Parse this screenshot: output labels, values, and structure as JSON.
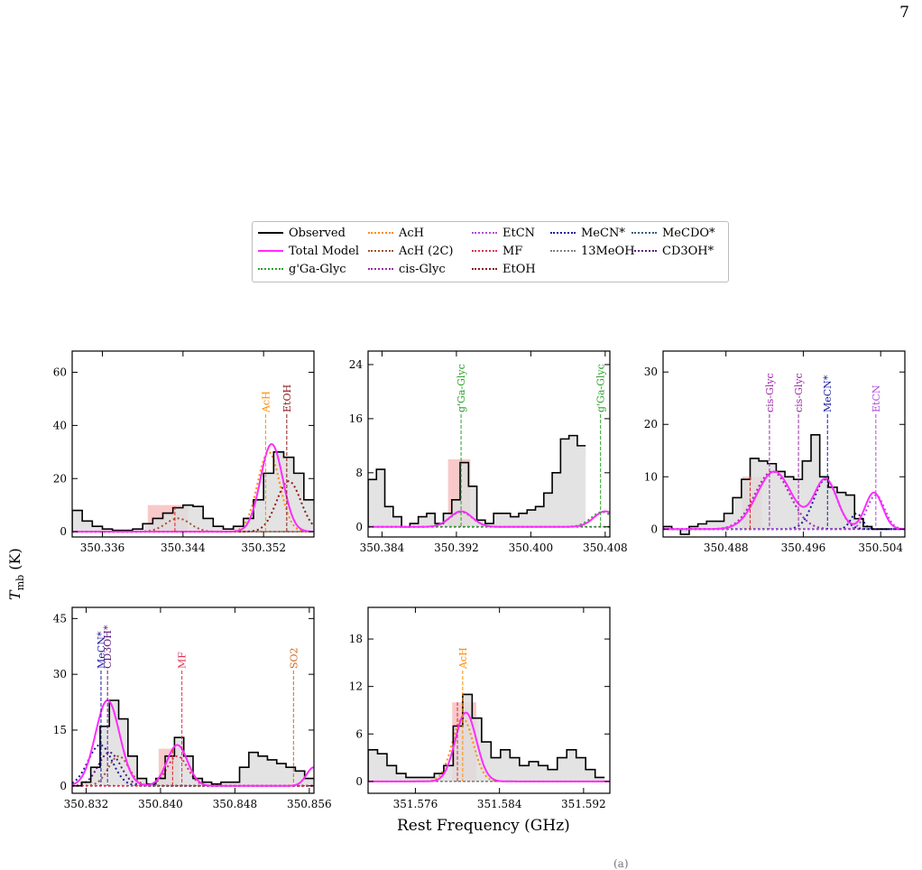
{
  "page_number": "7",
  "y_axis_label": "T",
  "y_axis_label_sub": "mb",
  "y_axis_label_unit": " (K)",
  "x_axis_label": "Rest Frequency (GHz)",
  "caption_fragment": "(a)",
  "colors": {
    "observed": "#000000",
    "total_model": "#ff2bff",
    "fill": "#dedede",
    "highlight": "#f7b7b7"
  },
  "legend": [
    {
      "label": "Observed",
      "color": "#000000",
      "style": "solid"
    },
    {
      "label": "Total Model",
      "color": "#ff2bff",
      "style": "solid"
    },
    {
      "label": "g'Ga-Glyc",
      "color": "#2ca02c",
      "style": "dotted"
    },
    {
      "label": "AcH",
      "color": "#ff8c00",
      "style": "dotted"
    },
    {
      "label": "AcH (2C)",
      "color": "#a0522d",
      "style": "dotted"
    },
    {
      "label": "cis-Glyc",
      "color": "#9b2aa8",
      "style": "dotted"
    },
    {
      "label": "EtCN",
      "color": "#b04ce0",
      "style": "dotted"
    },
    {
      "label": "MF",
      "color": "#e03050",
      "style": "dotted"
    },
    {
      "label": "EtOH",
      "color": "#8b1a1a",
      "style": "dotted"
    },
    {
      "label": "MeCN*",
      "color": "#1a1aa0",
      "style": "dotted"
    },
    {
      "label": "13MeOH",
      "color": "#808080",
      "style": "dotted"
    },
    {
      "label": "MeCDO*",
      "color": "#2f5f7f",
      "style": "dotted"
    },
    {
      "label": "CD3OH*",
      "color": "#5a1a7a",
      "style": "dotted"
    }
  ],
  "chart_data": [
    {
      "type": "line",
      "xlim": [
        350.333,
        350.357
      ],
      "ylim": [
        -2,
        68
      ],
      "xticks": [
        350.336,
        350.344,
        350.352
      ],
      "yticks": [
        0,
        20,
        40,
        60
      ],
      "step_x0": 350.333,
      "step_dx": 0.001,
      "observed": [
        8,
        4,
        2,
        1,
        0.5,
        0.5,
        1,
        3,
        5,
        7,
        9,
        10,
        9.5,
        5,
        2,
        1,
        2,
        5,
        12,
        22,
        30,
        28,
        22,
        12
      ],
      "highlights": [
        {
          "x0": 350.3405,
          "x1": 350.3445,
          "y": 10
        }
      ],
      "total_model": [
        {
          "center": 350.3528,
          "amp": 33,
          "sigma": 0.0011,
          "base": 0
        }
      ],
      "components": [
        {
          "name": "AcH",
          "color": "#ff8c00",
          "center": 350.3525,
          "amp": 30,
          "sigma": 0.0011
        },
        {
          "name": "EtOH",
          "color": "#8b1a1a",
          "center": 350.3545,
          "amp": 19,
          "sigma": 0.0012
        },
        {
          "name": "AcH (2C)",
          "color": "#a0522d",
          "center": 350.3435,
          "amp": 5,
          "sigma": 0.0012
        }
      ],
      "lines": [
        {
          "label": "AcH",
          "x": 350.3522,
          "color": "#ff8c00"
        },
        {
          "label": "EtOH",
          "x": 350.3543,
          "color": "#8b1a1a"
        }
      ],
      "red_lines": [
        350.3432
      ]
    },
    {
      "type": "line",
      "xlim": [
        350.3825,
        350.4085
      ],
      "ylim": [
        -1.5,
        26
      ],
      "xticks": [
        350.384,
        350.392,
        350.4,
        350.408
      ],
      "yticks": [
        0,
        8,
        16,
        24
      ],
      "step_x0": 350.3825,
      "step_dx": 0.0009,
      "observed": [
        7,
        8.5,
        3,
        1.5,
        0,
        0.5,
        1.5,
        2,
        0.5,
        2,
        4,
        9.5,
        6,
        1,
        0.5,
        2,
        2,
        1.5,
        2,
        2.5,
        3,
        5,
        8,
        13,
        13.5,
        12
      ],
      "highlights": [
        {
          "x0": 350.3911,
          "x1": 350.3935,
          "y": 10
        }
      ],
      "total_model": [
        {
          "center": 350.3925,
          "amp": 2.3,
          "sigma": 0.0012,
          "base": 0
        },
        {
          "center": 350.408,
          "amp": 2.3,
          "sigma": 0.0012,
          "base": 0
        }
      ],
      "components": [
        {
          "name": "g'Ga-Glyc",
          "color": "#2ca02c",
          "center": 350.3925,
          "amp": 2.2,
          "sigma": 0.0012
        },
        {
          "name": "g'Ga-Glyc",
          "color": "#2ca02c",
          "center": 350.4077,
          "amp": 2.2,
          "sigma": 0.0012
        }
      ],
      "lines": [
        {
          "label": "g'Ga-Glyc",
          "x": 350.3925,
          "color": "#2ca02c"
        },
        {
          "label": "g'Ga-Glyc",
          "x": 350.4075,
          "color": "#2ca02c"
        }
      ],
      "red_lines": []
    },
    {
      "type": "line",
      "xlim": [
        350.4815,
        350.5065
      ],
      "ylim": [
        -1.5,
        34
      ],
      "xticks": [
        350.488,
        350.496,
        350.504
      ],
      "yticks": [
        0,
        10,
        20,
        30
      ],
      "step_x0": 350.4815,
      "step_dx": 0.0009,
      "observed": [
        0.5,
        0,
        -1,
        0.5,
        1,
        1.5,
        1.5,
        3,
        6,
        9.5,
        13.5,
        13,
        12.5,
        11,
        10,
        9.5,
        13,
        18,
        10,
        8,
        7,
        6.5,
        2,
        0.5,
        0,
        0
      ],
      "highlights": [
        {
          "x0": 350.4897,
          "x1": 350.4917,
          "y": 10
        }
      ],
      "total_model": [
        {
          "center": 350.493,
          "amp": 11,
          "sigma": 0.0018,
          "base": 0
        },
        {
          "center": 350.4983,
          "amp": 9.5,
          "sigma": 0.0012,
          "base": 0
        },
        {
          "center": 350.5033,
          "amp": 7,
          "sigma": 0.0009,
          "base": 0
        }
      ],
      "components": [
        {
          "name": "cis-Glyc",
          "color": "#9b2aa8",
          "center": 350.4928,
          "amp": 11,
          "sigma": 0.0018
        },
        {
          "name": "MeCN*",
          "color": "#1a1aa0",
          "center": 350.4983,
          "amp": 9.5,
          "sigma": 0.0012
        },
        {
          "name": "MeCN*",
          "color": "#1a1aa0",
          "center": 350.5015,
          "amp": 3,
          "sigma": 0.0006
        },
        {
          "name": "EtCN",
          "color": "#b04ce0",
          "center": 350.5035,
          "amp": 6.5,
          "sigma": 0.0009
        }
      ],
      "lines": [
        {
          "label": "cis-Glyc",
          "x": 350.4925,
          "color": "#9b2aa8"
        },
        {
          "label": "cis-Glyc",
          "x": 350.4955,
          "color": "#9b2aa8"
        },
        {
          "label": "MeCN*",
          "x": 350.4985,
          "color": "#1a1aa0"
        },
        {
          "label": "EtCN",
          "x": 350.5035,
          "color": "#b04ce0"
        }
      ],
      "red_lines": [
        350.4905
      ]
    },
    {
      "type": "line",
      "xlim": [
        350.8305,
        350.8565
      ],
      "ylim": [
        -2,
        48
      ],
      "xticks": [
        350.832,
        350.84,
        350.848,
        350.856
      ],
      "yticks": [
        0,
        15,
        30,
        45
      ],
      "step_x0": 350.8305,
      "step_dx": 0.001,
      "observed": [
        0,
        1,
        5,
        16,
        23,
        18,
        8,
        2,
        0.5,
        2,
        8,
        13,
        8,
        2,
        1,
        0.5,
        1,
        1,
        5,
        9,
        8,
        7,
        6,
        5,
        4,
        2
      ],
      "highlights": [
        {
          "x0": 350.8398,
          "x1": 350.842,
          "y": 10
        }
      ],
      "total_model": [
        {
          "center": 350.8343,
          "amp": 23,
          "sigma": 0.0013,
          "base": 0
        },
        {
          "center": 350.8418,
          "amp": 11,
          "sigma": 0.0011,
          "base": 0
        },
        {
          "center": 350.8565,
          "amp": 5,
          "sigma": 0.0008,
          "base": 0
        }
      ],
      "components": [
        {
          "name": "MeCN*",
          "color": "#1a1aa0",
          "center": 350.8335,
          "amp": 11,
          "sigma": 0.0013
        },
        {
          "name": "CD3OH*",
          "color": "#5a1a7a",
          "center": 350.8345,
          "amp": 9,
          "sigma": 0.0012
        },
        {
          "name": "AcH (2C)",
          "color": "#a0522d",
          "center": 350.8355,
          "amp": 8,
          "sigma": 0.0011
        },
        {
          "name": "MF",
          "color": "#e03050",
          "center": 350.8418,
          "amp": 8,
          "sigma": 0.0011
        }
      ],
      "lines": [
        {
          "label": "MeCN*",
          "x": 350.8336,
          "color": "#1a1aa0"
        },
        {
          "label": "CD3OH*",
          "x": 350.8343,
          "color": "#5a1a7a"
        },
        {
          "label": "MF",
          "x": 350.8423,
          "color": "#e03050"
        },
        {
          "label": "SO2",
          "x": 350.8543,
          "color": "#d2691e"
        }
      ],
      "red_lines": [
        350.8413
      ]
    },
    {
      "type": "line",
      "xlim": [
        351.5715,
        351.5945
      ],
      "ylim": [
        -1.5,
        22
      ],
      "xticks": [
        351.576,
        351.584,
        351.592
      ],
      "yticks": [
        0,
        6,
        12,
        18
      ],
      "step_x0": 351.5715,
      "step_dx": 0.0009,
      "observed": [
        4,
        3.5,
        2,
        1,
        0.5,
        0.5,
        0.5,
        1,
        2,
        7,
        11,
        8,
        5,
        3,
        4,
        3,
        2,
        2.5,
        2,
        1.5,
        3,
        4,
        3,
        1.5,
        0.5
      ],
      "highlights": [
        {
          "x0": 351.5795,
          "x1": 351.5818,
          "y": 10
        }
      ],
      "total_model": [
        {
          "center": 351.5808,
          "amp": 8.7,
          "sigma": 0.001,
          "base": 0
        }
      ],
      "components": [
        {
          "name": "AcH",
          "color": "#ff8c00",
          "center": 351.5805,
          "amp": 8,
          "sigma": 0.001
        }
      ],
      "lines": [
        {
          "label": "AcH",
          "x": 351.5805,
          "color": "#ff8c00"
        }
      ],
      "red_lines": [
        351.58
      ]
    }
  ]
}
